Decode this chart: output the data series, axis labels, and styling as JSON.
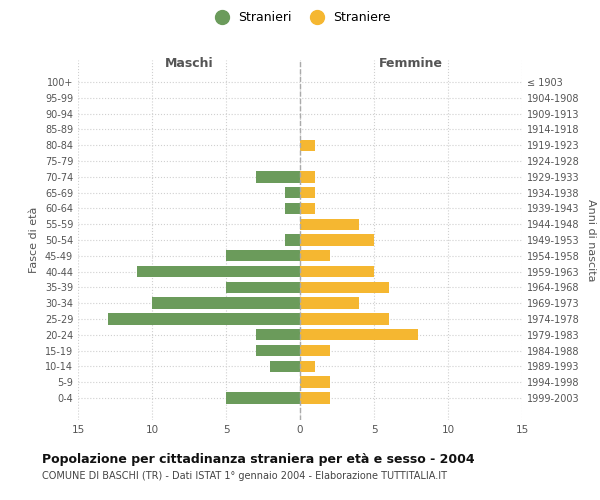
{
  "age_groups": [
    "100+",
    "95-99",
    "90-94",
    "85-89",
    "80-84",
    "75-79",
    "70-74",
    "65-69",
    "60-64",
    "55-59",
    "50-54",
    "45-49",
    "40-44",
    "35-39",
    "30-34",
    "25-29",
    "20-24",
    "15-19",
    "10-14",
    "5-9",
    "0-4"
  ],
  "birth_years": [
    "≤ 1903",
    "1904-1908",
    "1909-1913",
    "1914-1918",
    "1919-1923",
    "1924-1928",
    "1929-1933",
    "1934-1938",
    "1939-1943",
    "1944-1948",
    "1949-1953",
    "1954-1958",
    "1959-1963",
    "1964-1968",
    "1969-1973",
    "1974-1978",
    "1979-1983",
    "1984-1988",
    "1989-1993",
    "1994-1998",
    "1999-2003"
  ],
  "maschi": [
    0,
    0,
    0,
    0,
    0,
    0,
    3,
    1,
    1,
    0,
    1,
    5,
    11,
    5,
    10,
    13,
    3,
    3,
    2,
    0,
    5
  ],
  "femmine": [
    0,
    0,
    0,
    0,
    1,
    0,
    1,
    1,
    1,
    4,
    5,
    2,
    5,
    6,
    4,
    6,
    8,
    2,
    1,
    2,
    2
  ],
  "maschi_color": "#6b9b5b",
  "femmine_color": "#f5b731",
  "title": "Popolazione per cittadinanza straniera per età e sesso - 2004",
  "subtitle": "COMUNE DI BASCHI (TR) - Dati ISTAT 1° gennaio 2004 - Elaborazione TUTTITALIA.IT",
  "xlabel_left": "Maschi",
  "xlabel_right": "Femmine",
  "ylabel_left": "Fasce di età",
  "ylabel_right": "Anni di nascita",
  "legend_maschi": "Stranieri",
  "legend_femmine": "Straniere",
  "xlim": 15,
  "background_color": "#ffffff",
  "grid_color": "#d0d0d0",
  "dashed_line_color": "#aaaaaa",
  "tick_label_color": "#555555",
  "header_color": "#555555"
}
